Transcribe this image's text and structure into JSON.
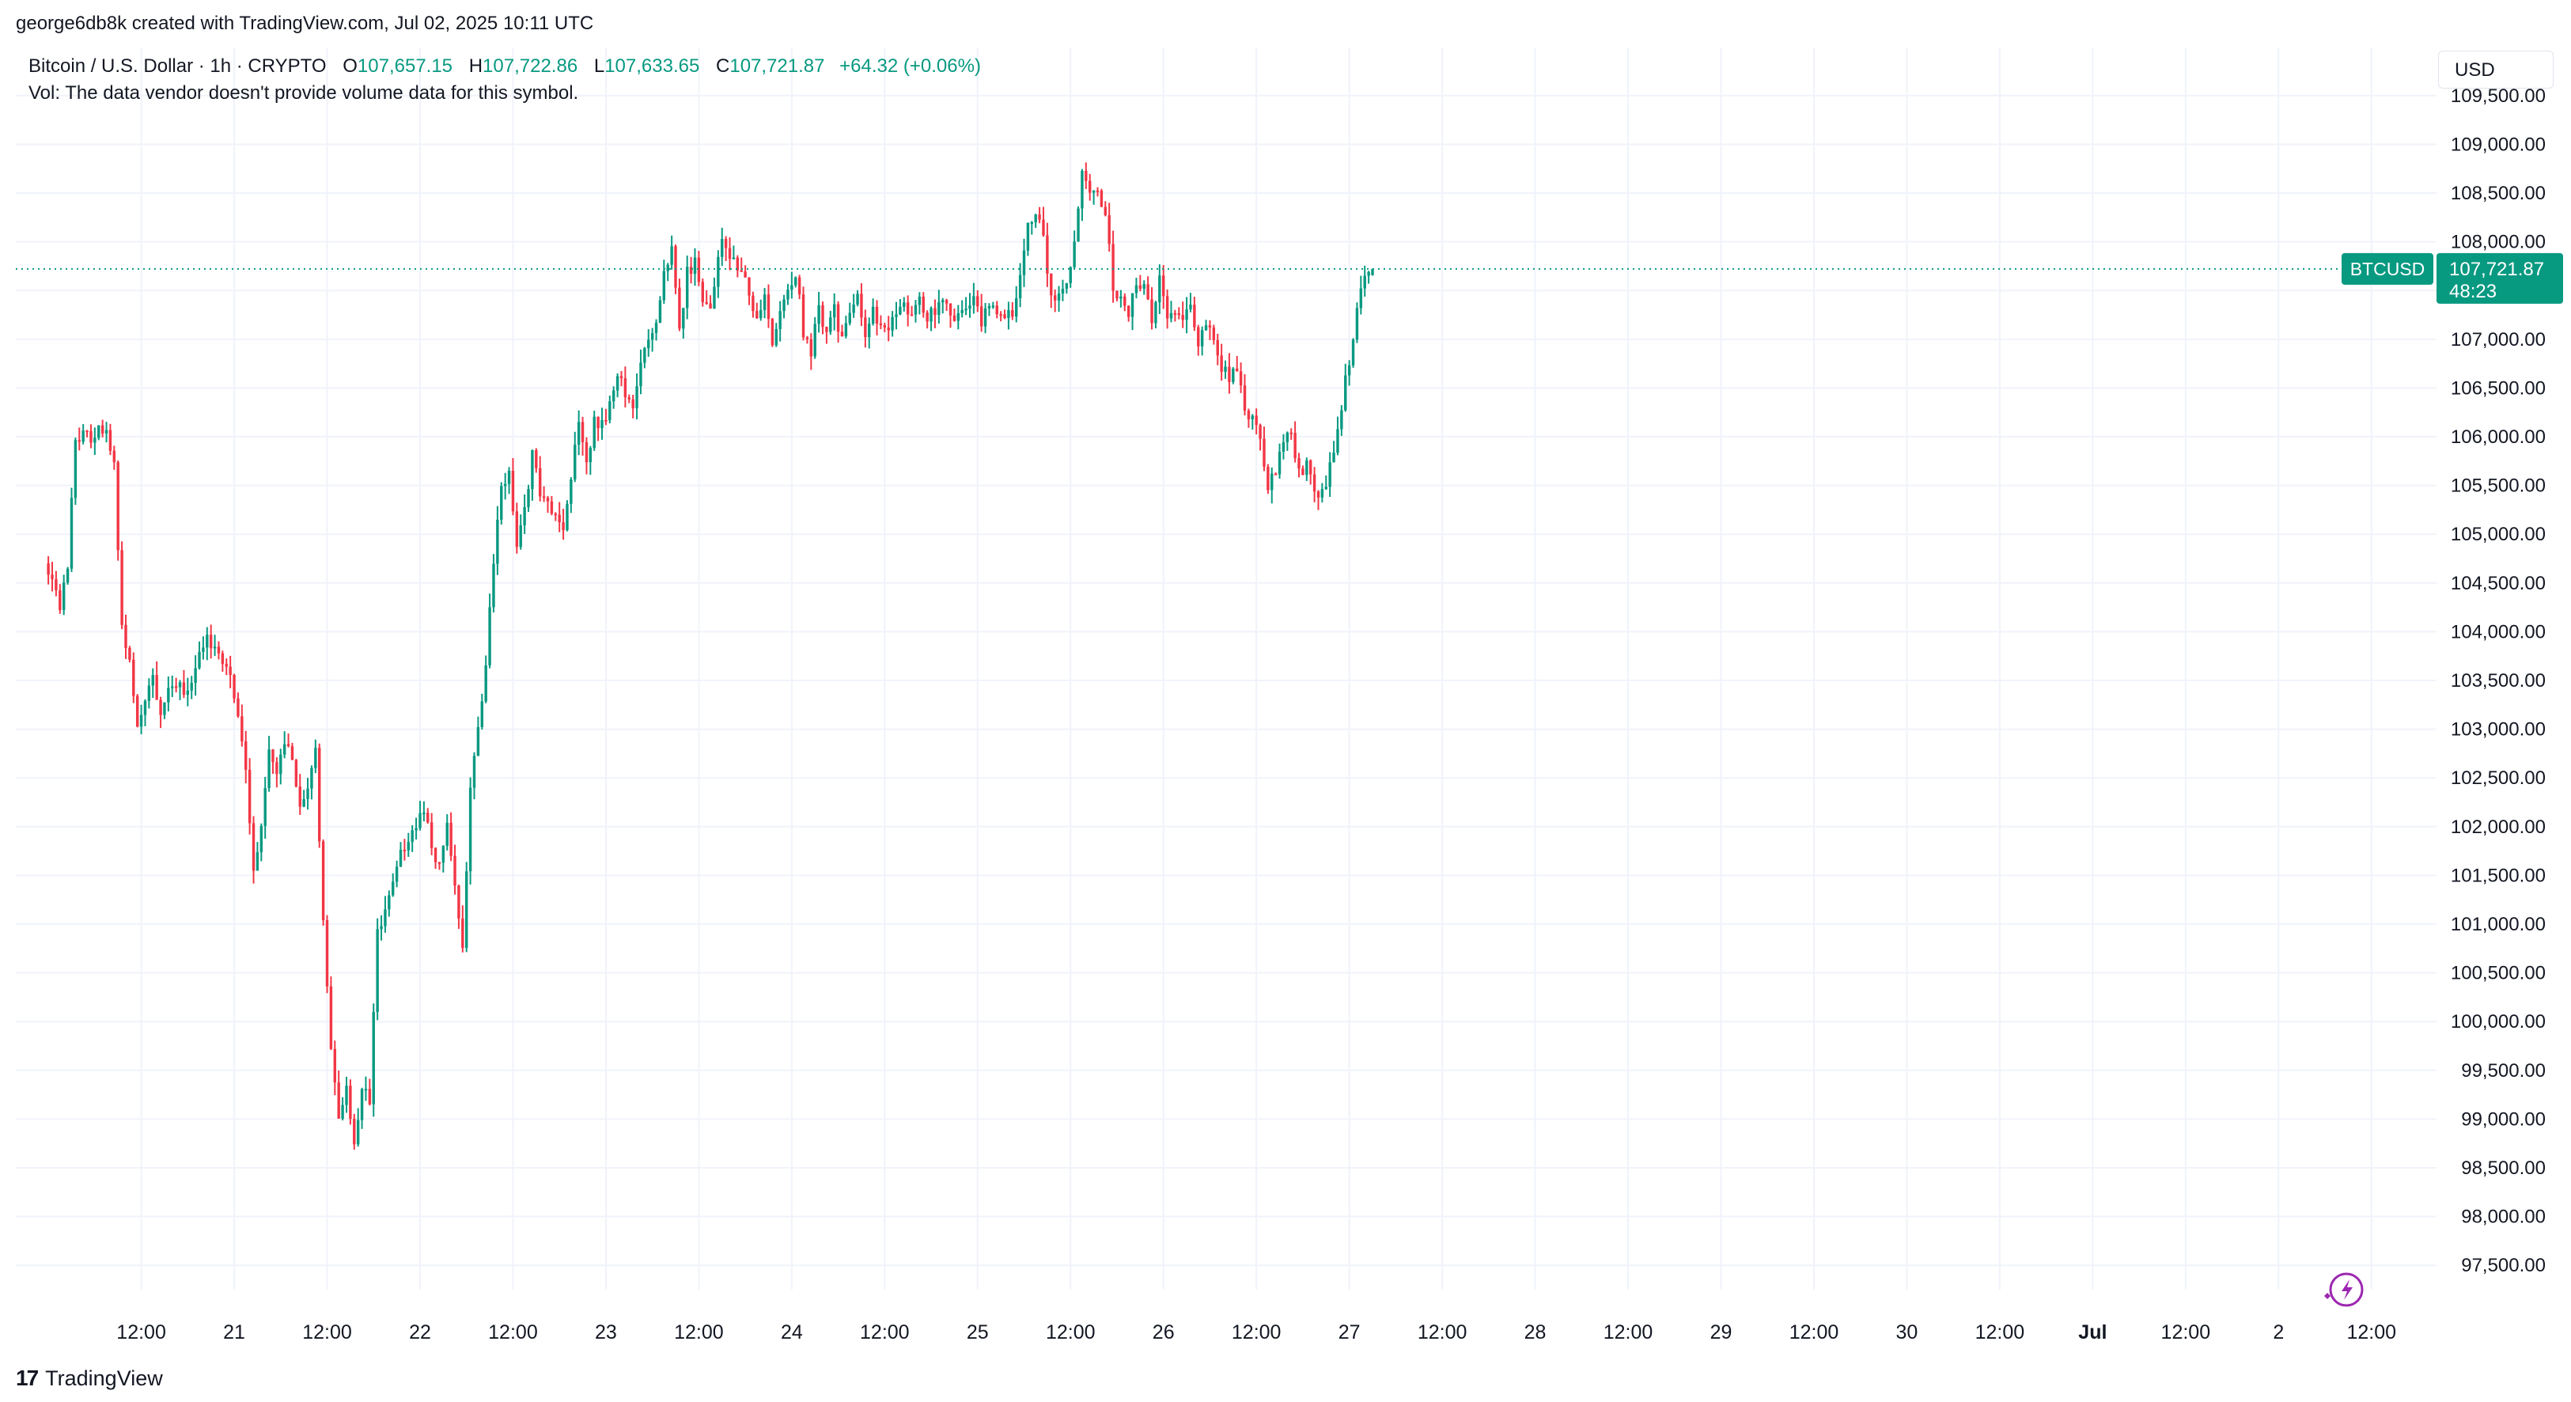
{
  "credit": "george6db8k created with TradingView.com, Jul 02, 2025 10:11 UTC",
  "legend": {
    "symbol": "Bitcoin / U.S. Dollar · 1h · CRYPTO",
    "open_label": "O",
    "open": "107,657.15",
    "high_label": "H",
    "high": "107,722.86",
    "low_label": "L",
    "low": "107,633.65",
    "close_label": "C",
    "close": "107,721.87",
    "change": "+64.32 (+0.06%)"
  },
  "volume_note": "Vol: The data vendor doesn't provide volume data for this symbol.",
  "currency": "USD",
  "price_tag": {
    "ticker": "BTCUSD",
    "price": "107,721.87",
    "countdown": "48:23",
    "value": 107721.87
  },
  "brand": {
    "name": "TradingView",
    "logo_text": "17"
  },
  "colors": {
    "up": "#089981",
    "down": "#f23645",
    "grid": "#f0f3fa",
    "text": "#131722",
    "tag": "#089981",
    "accent": "#9c27b0"
  },
  "icons": {
    "flash": "flash-icon"
  },
  "chart_data": {
    "type": "candlestick",
    "title": "",
    "xlabel": "",
    "ylabel": "",
    "ylim": [
      97250,
      109750
    ],
    "y_ticks": [
      "97,500.00",
      "98,000.00",
      "98,500.00",
      "99,000.00",
      "99,500.00",
      "100,000.00",
      "100,500.00",
      "101,000.00",
      "101,500.00",
      "102,000.00",
      "102,500.00",
      "103,000.00",
      "103,500.00",
      "104,000.00",
      "104,500.00",
      "105,000.00",
      "105,500.00",
      "106,000.00",
      "106,500.00",
      "107,000.00",
      "107,500.00",
      "108,000.00",
      "108,500.00",
      "109,000.00",
      "109,500.00"
    ],
    "y_tick_values": [
      97500,
      98000,
      98500,
      99000,
      99500,
      100000,
      100500,
      101000,
      101500,
      102000,
      102500,
      103000,
      103500,
      104000,
      104500,
      105000,
      105500,
      106000,
      106500,
      107000,
      107500,
      108000,
      108500,
      109000,
      109500
    ],
    "x_ticks": [
      "12:00",
      "21",
      "12:00",
      "22",
      "12:00",
      "23",
      "12:00",
      "24",
      "12:00",
      "25",
      "12:00",
      "26",
      "12:00",
      "27",
      "12:00",
      "28",
      "12:00",
      "29",
      "12:00",
      "30",
      "12:00",
      "Jul",
      "12:00",
      "2",
      "12:00"
    ],
    "x_tick_bold": [
      false,
      false,
      false,
      false,
      false,
      false,
      false,
      false,
      false,
      false,
      false,
      false,
      false,
      false,
      false,
      false,
      false,
      false,
      false,
      false,
      false,
      true,
      false,
      false,
      false
    ],
    "x_tick_hours": [
      12,
      24,
      36,
      48,
      60,
      72,
      84,
      96,
      108,
      120,
      132,
      144,
      156,
      168,
      180,
      192,
      204,
      216,
      228,
      240,
      252,
      264,
      276,
      288,
      300
    ],
    "x_hour_range": [
      -4.2,
      308.4
    ],
    "current_price": 107721.87,
    "anchors": [
      [
        0,
        104700
      ],
      [
        1,
        104500
      ],
      [
        2,
        104300
      ],
      [
        3,
        104700
      ],
      [
        4,
        105900
      ],
      [
        5,
        106050
      ],
      [
        6,
        106000
      ],
      [
        7,
        106050
      ],
      [
        8,
        106000
      ],
      [
        9,
        105700
      ],
      [
        10,
        104000
      ],
      [
        11,
        103700
      ],
      [
        12,
        103100
      ],
      [
        13,
        103300
      ],
      [
        14,
        103500
      ],
      [
        15,
        103100
      ],
      [
        16,
        103400
      ],
      [
        17,
        103500
      ],
      [
        18,
        103400
      ],
      [
        19,
        103500
      ],
      [
        20,
        103800
      ],
      [
        21,
        103900
      ],
      [
        22,
        103800
      ],
      [
        23,
        103700
      ],
      [
        24,
        103500
      ],
      [
        25,
        103200
      ],
      [
        26,
        102600
      ],
      [
        27,
        101500
      ],
      [
        28,
        102000
      ],
      [
        29,
        102800
      ],
      [
        30,
        102600
      ],
      [
        31,
        102900
      ],
      [
        32,
        102700
      ],
      [
        33,
        102200
      ],
      [
        34,
        102400
      ],
      [
        35,
        102800
      ],
      [
        36,
        101000
      ],
      [
        37,
        99700
      ],
      [
        38,
        99000
      ],
      [
        39,
        99300
      ],
      [
        40,
        98800
      ],
      [
        41,
        99300
      ],
      [
        42,
        99200
      ],
      [
        43,
        100900
      ],
      [
        44,
        101100
      ],
      [
        45,
        101500
      ],
      [
        46,
        101700
      ],
      [
        47,
        101800
      ],
      [
        48,
        102000
      ],
      [
        49,
        102200
      ],
      [
        50,
        101800
      ],
      [
        51,
        101600
      ],
      [
        52,
        102100
      ],
      [
        53,
        101400
      ],
      [
        54,
        100800
      ],
      [
        55,
        102400
      ],
      [
        56,
        103000
      ],
      [
        57,
        103700
      ],
      [
        58,
        104700
      ],
      [
        59,
        105500
      ],
      [
        60,
        105600
      ],
      [
        61,
        104900
      ],
      [
        62,
        105200
      ],
      [
        63,
        105800
      ],
      [
        64,
        105400
      ],
      [
        65,
        105300
      ],
      [
        66,
        105200
      ],
      [
        67,
        105100
      ],
      [
        68,
        105600
      ],
      [
        69,
        106100
      ],
      [
        70,
        105700
      ],
      [
        71,
        106200
      ],
      [
        72,
        106100
      ],
      [
        73,
        106300
      ],
      [
        74,
        106700
      ],
      [
        75,
        106400
      ],
      [
        76,
        106300
      ],
      [
        77,
        106800
      ],
      [
        78,
        107000
      ],
      [
        79,
        107200
      ],
      [
        80,
        107700
      ],
      [
        81,
        107900
      ],
      [
        82,
        107100
      ],
      [
        83,
        107700
      ],
      [
        84,
        107800
      ],
      [
        85,
        107400
      ],
      [
        86,
        107300
      ],
      [
        87,
        107900
      ],
      [
        88,
        108000
      ],
      [
        89,
        107800
      ],
      [
        90,
        107700
      ],
      [
        91,
        107500
      ],
      [
        92,
        107200
      ],
      [
        93,
        107400
      ],
      [
        94,
        107000
      ],
      [
        95,
        107300
      ],
      [
        96,
        107500
      ],
      [
        97,
        107700
      ],
      [
        98,
        107100
      ],
      [
        99,
        106900
      ],
      [
        100,
        107300
      ],
      [
        101,
        107000
      ],
      [
        102,
        107300
      ],
      [
        103,
        107000
      ],
      [
        104,
        107200
      ],
      [
        105,
        107400
      ],
      [
        106,
        107000
      ],
      [
        107,
        107300
      ],
      [
        108,
        107100
      ],
      [
        109,
        107100
      ],
      [
        110,
        107300
      ],
      [
        111,
        107300
      ],
      [
        112,
        107300
      ],
      [
        113,
        107400
      ],
      [
        114,
        107200
      ],
      [
        115,
        107300
      ],
      [
        116,
        107400
      ],
      [
        117,
        107300
      ],
      [
        118,
        107200
      ],
      [
        119,
        107300
      ],
      [
        120,
        107400
      ],
      [
        121,
        107200
      ],
      [
        122,
        107300
      ],
      [
        123,
        107300
      ],
      [
        124,
        107200
      ],
      [
        125,
        107300
      ],
      [
        126,
        107600
      ],
      [
        127,
        108200
      ],
      [
        128,
        108300
      ],
      [
        129,
        108000
      ],
      [
        130,
        107500
      ],
      [
        131,
        107400
      ],
      [
        132,
        107600
      ],
      [
        133,
        108000
      ],
      [
        134,
        108700
      ],
      [
        135,
        108500
      ],
      [
        136,
        108500
      ],
      [
        137,
        108300
      ],
      [
        138,
        107500
      ],
      [
        139,
        107400
      ],
      [
        140,
        107300
      ],
      [
        141,
        107500
      ],
      [
        142,
        107600
      ],
      [
        143,
        107100
      ],
      [
        144,
        107700
      ],
      [
        145,
        107200
      ],
      [
        146,
        107300
      ],
      [
        147,
        107200
      ],
      [
        148,
        107300
      ],
      [
        149,
        107000
      ],
      [
        150,
        107100
      ],
      [
        151,
        107000
      ],
      [
        152,
        106700
      ],
      [
        153,
        106600
      ],
      [
        154,
        106700
      ],
      [
        155,
        106300
      ],
      [
        156,
        106200
      ],
      [
        157,
        106000
      ],
      [
        158,
        105500
      ],
      [
        159,
        105600
      ],
      [
        160,
        106000
      ],
      [
        161,
        106100
      ],
      [
        162,
        105600
      ],
      [
        163,
        105700
      ],
      [
        164,
        105500
      ],
      [
        165,
        105400
      ],
      [
        166,
        105700
      ],
      [
        167,
        106100
      ],
      [
        168,
        106600
      ],
      [
        169,
        107000
      ],
      [
        170,
        107500
      ],
      [
        171,
        107721.87
      ]
    ]
  }
}
